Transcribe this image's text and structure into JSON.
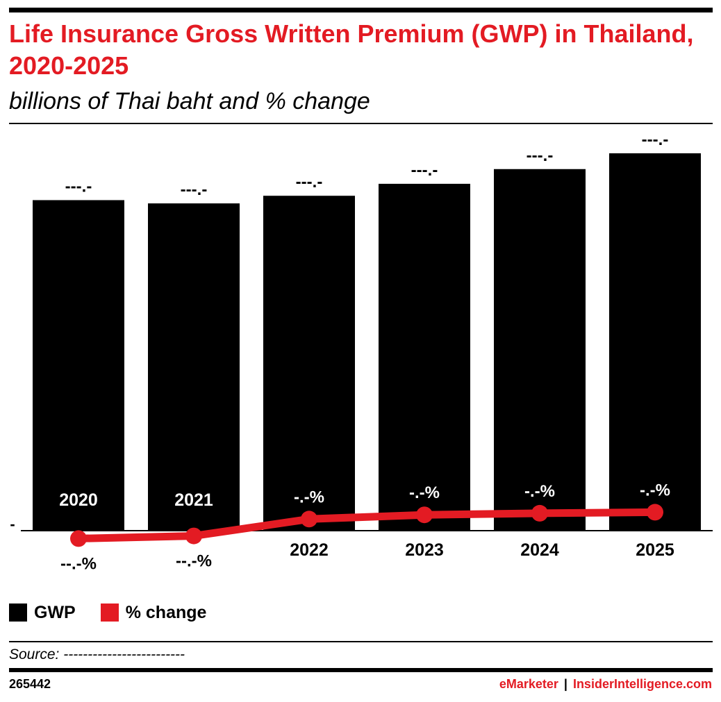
{
  "header": {
    "title": "Life Insurance Gross Written Premium (GWP) in Thailand, 2020-2025",
    "subtitle": "billions of Thai baht and % change"
  },
  "legend": [
    {
      "label": "GWP",
      "color": "#000000"
    },
    {
      "label": "% change",
      "color": "#e31b23"
    }
  ],
  "footer": {
    "source": "Source: -------------------------",
    "chart_id": "265442",
    "brand_left": "eMarketer",
    "brand_separator": "|",
    "brand_right": "InsiderIntelligence.com"
  },
  "chart_data": {
    "type": "bar",
    "categories": [
      "2020",
      "2021",
      "2022",
      "2023",
      "2024",
      "2025"
    ],
    "series": [
      {
        "name": "GWP",
        "color": "#000000",
        "values": [
          607,
          601,
          615,
          637,
          664,
          693
        ],
        "data_labels": [
          "---.-",
          "---.-",
          "---.-",
          "---.-",
          "---.-",
          "---.-"
        ]
      },
      {
        "name": "% change",
        "type": "line",
        "color": "#e31b23",
        "values": [
          -1.5,
          -1.0,
          2.2,
          3.0,
          3.3,
          3.5
        ],
        "data_labels": [
          "--.-%",
          "--.-%",
          "-.-%",
          "-.-%",
          "-.-%",
          "-.-%"
        ]
      }
    ],
    "y_axis_label_at_zero": "-",
    "grid": false,
    "legend_position": "bottom-left"
  }
}
